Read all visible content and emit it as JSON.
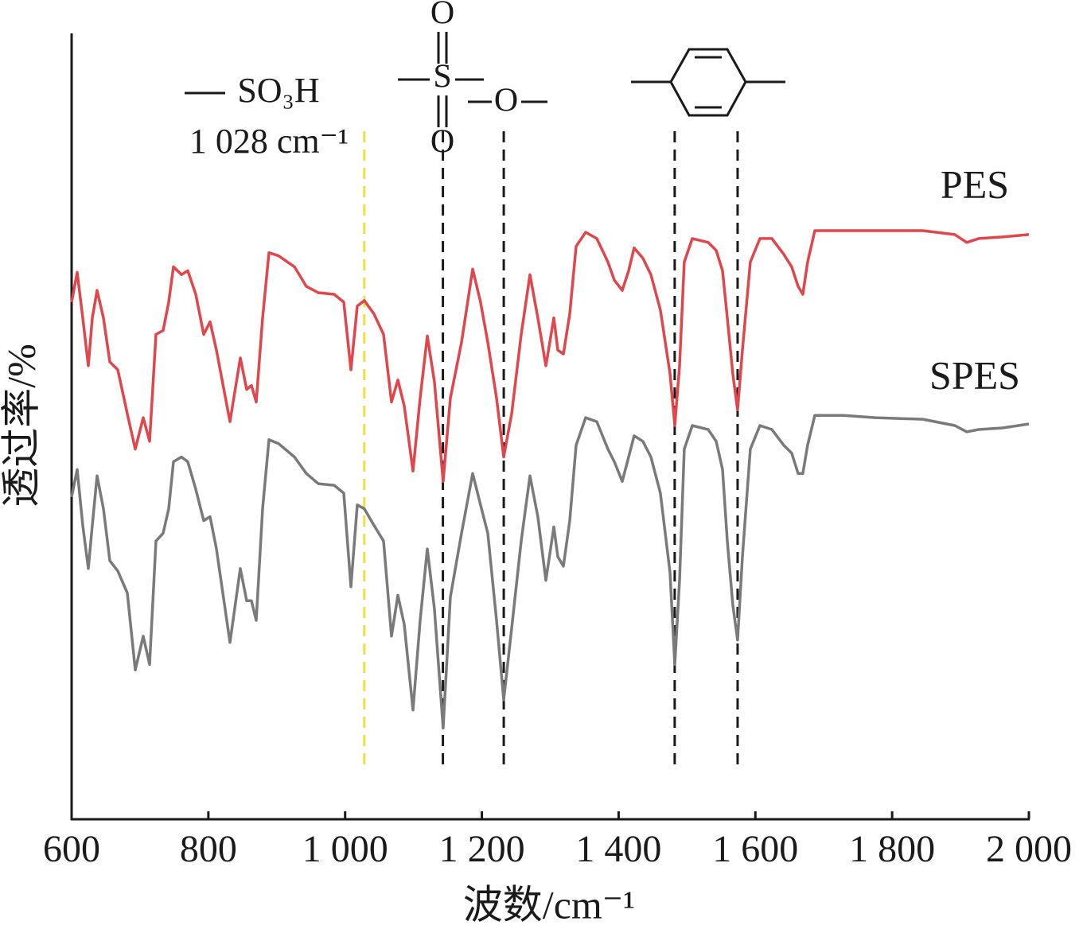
{
  "chart_data": {
    "type": "line",
    "xlabel": "波数/cm⁻¹",
    "ylabel": "透过率/%",
    "xlim": [
      600,
      2000
    ],
    "ylim": [
      0,
      100
    ],
    "xticks": [
      600,
      800,
      {
        "value": 1000,
        "label": "1 000"
      },
      {
        "value": 1200,
        "label": "1 200"
      },
      {
        "value": 1400,
        "label": "1 400"
      },
      {
        "value": 1600,
        "label": "1 600"
      },
      {
        "value": 1800,
        "label": "1 800"
      },
      {
        "value": 2000,
        "label": "2 000"
      }
    ],
    "x": [
      600,
      608.1,
      616.3,
      624.4,
      630.3,
      637.2,
      646.5,
      655.9,
      667.5,
      681.5,
      693.1,
      704.7,
      714.0,
      723.4,
      733.8,
      742.0,
      749.0,
      760.6,
      769.9,
      781.5,
      793.2,
      802.5,
      811.8,
      831.6,
      846.7,
      856.0,
      863.0,
      870.0,
      879.3,
      888.6,
      902.6,
      925.8,
      943.3,
      960.8,
      984.0,
      998.0,
      1008.5,
      1017.8,
      1028.2,
      1042.2,
      1056.2,
      1067.8,
      1077.1,
      1086.4,
      1099.2,
      1109.7,
      1120.2,
      1130.6,
      1143.4,
      1153.9,
      1170.2,
      1186.5,
      1198.1,
      1208.6,
      1221.4,
      1231.9,
      1243.5,
      1257.5,
      1270.3,
      1281.9,
      1293.6,
      1305.2,
      1311.1,
      1319.2,
      1328.5,
      1337.8,
      1351.8,
      1368.1,
      1384.4,
      1393.7,
      1405.3,
      1414.6,
      1422.7,
      1435.5,
      1447.2,
      1461.1,
      1475.1,
      1482.1,
      1489.1,
      1496.0,
      1507.7,
      1531.0,
      1542.6,
      1551.9,
      1558.9,
      1567.0,
      1574.0,
      1581.0,
      1592.6,
      1606.6,
      1624.1,
      1641.5,
      1653.1,
      1662.5,
      1669.4,
      1676.4,
      1686.9,
      1728.8,
      1775.3,
      1845.1,
      1891.7,
      1909.1,
      1926.6,
      1961.5,
      2000
    ],
    "series": [
      {
        "name": "PES",
        "color": "#e0474c",
        "values": [
          65.8,
          69.6,
          63.8,
          57.7,
          63.8,
          67.3,
          63.8,
          58.2,
          57.2,
          51.6,
          47.1,
          51.1,
          48.1,
          61.7,
          62.2,
          65.8,
          70.3,
          69.3,
          69.8,
          66.8,
          61.7,
          63.3,
          59.7,
          50.6,
          58.7,
          54.7,
          55.2,
          53.1,
          63.8,
          72.1,
          71.7,
          70.3,
          67.8,
          67.0,
          66.8,
          65.8,
          57.2,
          65.3,
          66.0,
          64.3,
          61.7,
          53.1,
          55.9,
          52.6,
          44.3,
          53.6,
          61.5,
          55.7,
          43.0,
          53.6,
          60.7,
          70.0,
          65.8,
          60.7,
          53.6,
          46.1,
          51.6,
          61.7,
          69.3,
          63.8,
          57.7,
          63.8,
          59.7,
          59.2,
          64.3,
          72.9,
          74.7,
          73.9,
          70.9,
          68.6,
          67.3,
          69.8,
          72.7,
          71.4,
          69.3,
          64.8,
          56.7,
          50.1,
          57.7,
          70.9,
          73.9,
          73.4,
          72.4,
          69.8,
          63.8,
          56.7,
          52.1,
          59.7,
          70.9,
          73.9,
          73.9,
          71.9,
          70.3,
          67.8,
          66.8,
          70.9,
          74.9,
          74.9,
          74.9,
          74.9,
          74.4,
          73.4,
          73.9,
          74.1,
          74.4
        ]
      },
      {
        "name": "SPES",
        "color": "#7a7a7a",
        "values": [
          41.0,
          44.5,
          37.4,
          31.9,
          37.4,
          43.7,
          39.5,
          32.9,
          31.6,
          28.8,
          19.0,
          23.3,
          19.7,
          35.4,
          36.4,
          39.5,
          45.5,
          46.1,
          45.5,
          42.0,
          38.0,
          38.5,
          34.4,
          22.5,
          31.9,
          27.8,
          27.8,
          25.3,
          39.5,
          48.3,
          47.8,
          46.1,
          44.0,
          42.7,
          42.5,
          41.5,
          29.6,
          40.0,
          39.5,
          37.4,
          35.4,
          23.3,
          28.5,
          24.8,
          13.9,
          25.3,
          34.4,
          26.8,
          11.6,
          28.3,
          36.4,
          44.0,
          40.0,
          36.4,
          25.3,
          15.2,
          24.3,
          35.4,
          43.7,
          38.5,
          30.4,
          37.2,
          33.4,
          32.2,
          38.0,
          47.6,
          51.1,
          50.6,
          47.1,
          45.5,
          43.0,
          46.1,
          48.8,
          48.1,
          46.1,
          41.5,
          31.4,
          19.7,
          30.4,
          47.1,
          50.1,
          49.6,
          48.1,
          44.5,
          35.4,
          27.3,
          22.8,
          33.4,
          47.1,
          50.1,
          49.6,
          47.6,
          46.6,
          44.0,
          44.0,
          47.6,
          51.4,
          51.4,
          51.1,
          50.9,
          50.1,
          49.3,
          49.6,
          49.8,
          50.3
        ]
      }
    ],
    "vlines": [
      {
        "x": 1028,
        "color": "#f0e040"
      },
      {
        "x": 1143,
        "color": "#1a1a1a"
      },
      {
        "x": 1232,
        "color": "#1a1a1a"
      },
      {
        "x": 1482,
        "color": "#1a1a1a"
      },
      {
        "x": 1574,
        "color": "#1a1a1a"
      }
    ],
    "annotations": {
      "group": "SO₃H",
      "wavenumber": "1 028 cm⁻¹",
      "atoms": [
        "O",
        "S",
        "O",
        "O"
      ]
    }
  }
}
